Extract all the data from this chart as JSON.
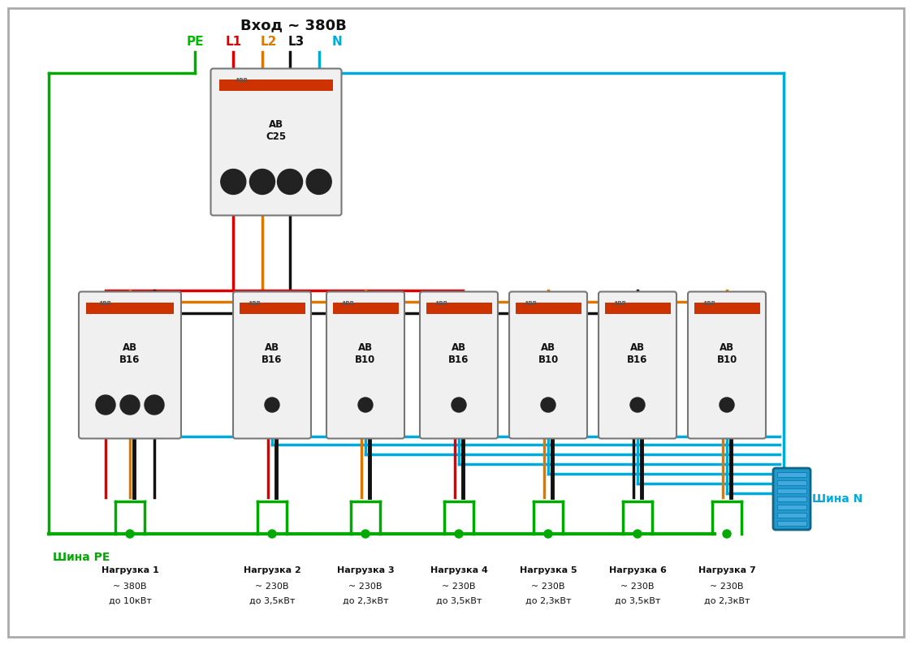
{
  "title": "Вход ~ 380В",
  "bg_color": "#ffffff",
  "border_color": "#888888",
  "wire_colors": {
    "PE": "#00aa00",
    "L1": "#dd0000",
    "L2": "#dd7700",
    "L3": "#111111",
    "N": "#00aadd"
  },
  "label_colors": {
    "PE": "#00bb00",
    "L1": "#dd0000",
    "L2": "#dd7700",
    "L3": "#111111",
    "N": "#00aadd"
  },
  "shina_PE": "Шина PE",
  "shina_N": "Шина N",
  "loads": [
    {
      "name": "Нагрузка 1",
      "voltage": "~ 380В",
      "power": "до 10кВт"
    },
    {
      "name": "Нагрузка 2",
      "voltage": "~ 230В",
      "power": "до 3,5кВт"
    },
    {
      "name": "Нагрузка 3",
      "voltage": "~ 230В",
      "power": "до 2,3кВт"
    },
    {
      "name": "Нагрузка 4",
      "voltage": "~ 230В",
      "power": "до 3,5кВт"
    },
    {
      "name": "Нагрузка 5",
      "voltage": "~ 230В",
      "power": "до 2,3кВт"
    },
    {
      "name": "Нагрузка 6",
      "voltage": "~ 230В",
      "power": "до 3,5кВт"
    },
    {
      "name": "Нагрузка 7",
      "voltage": "~ 230В",
      "power": "до 2,3кВт"
    }
  ]
}
